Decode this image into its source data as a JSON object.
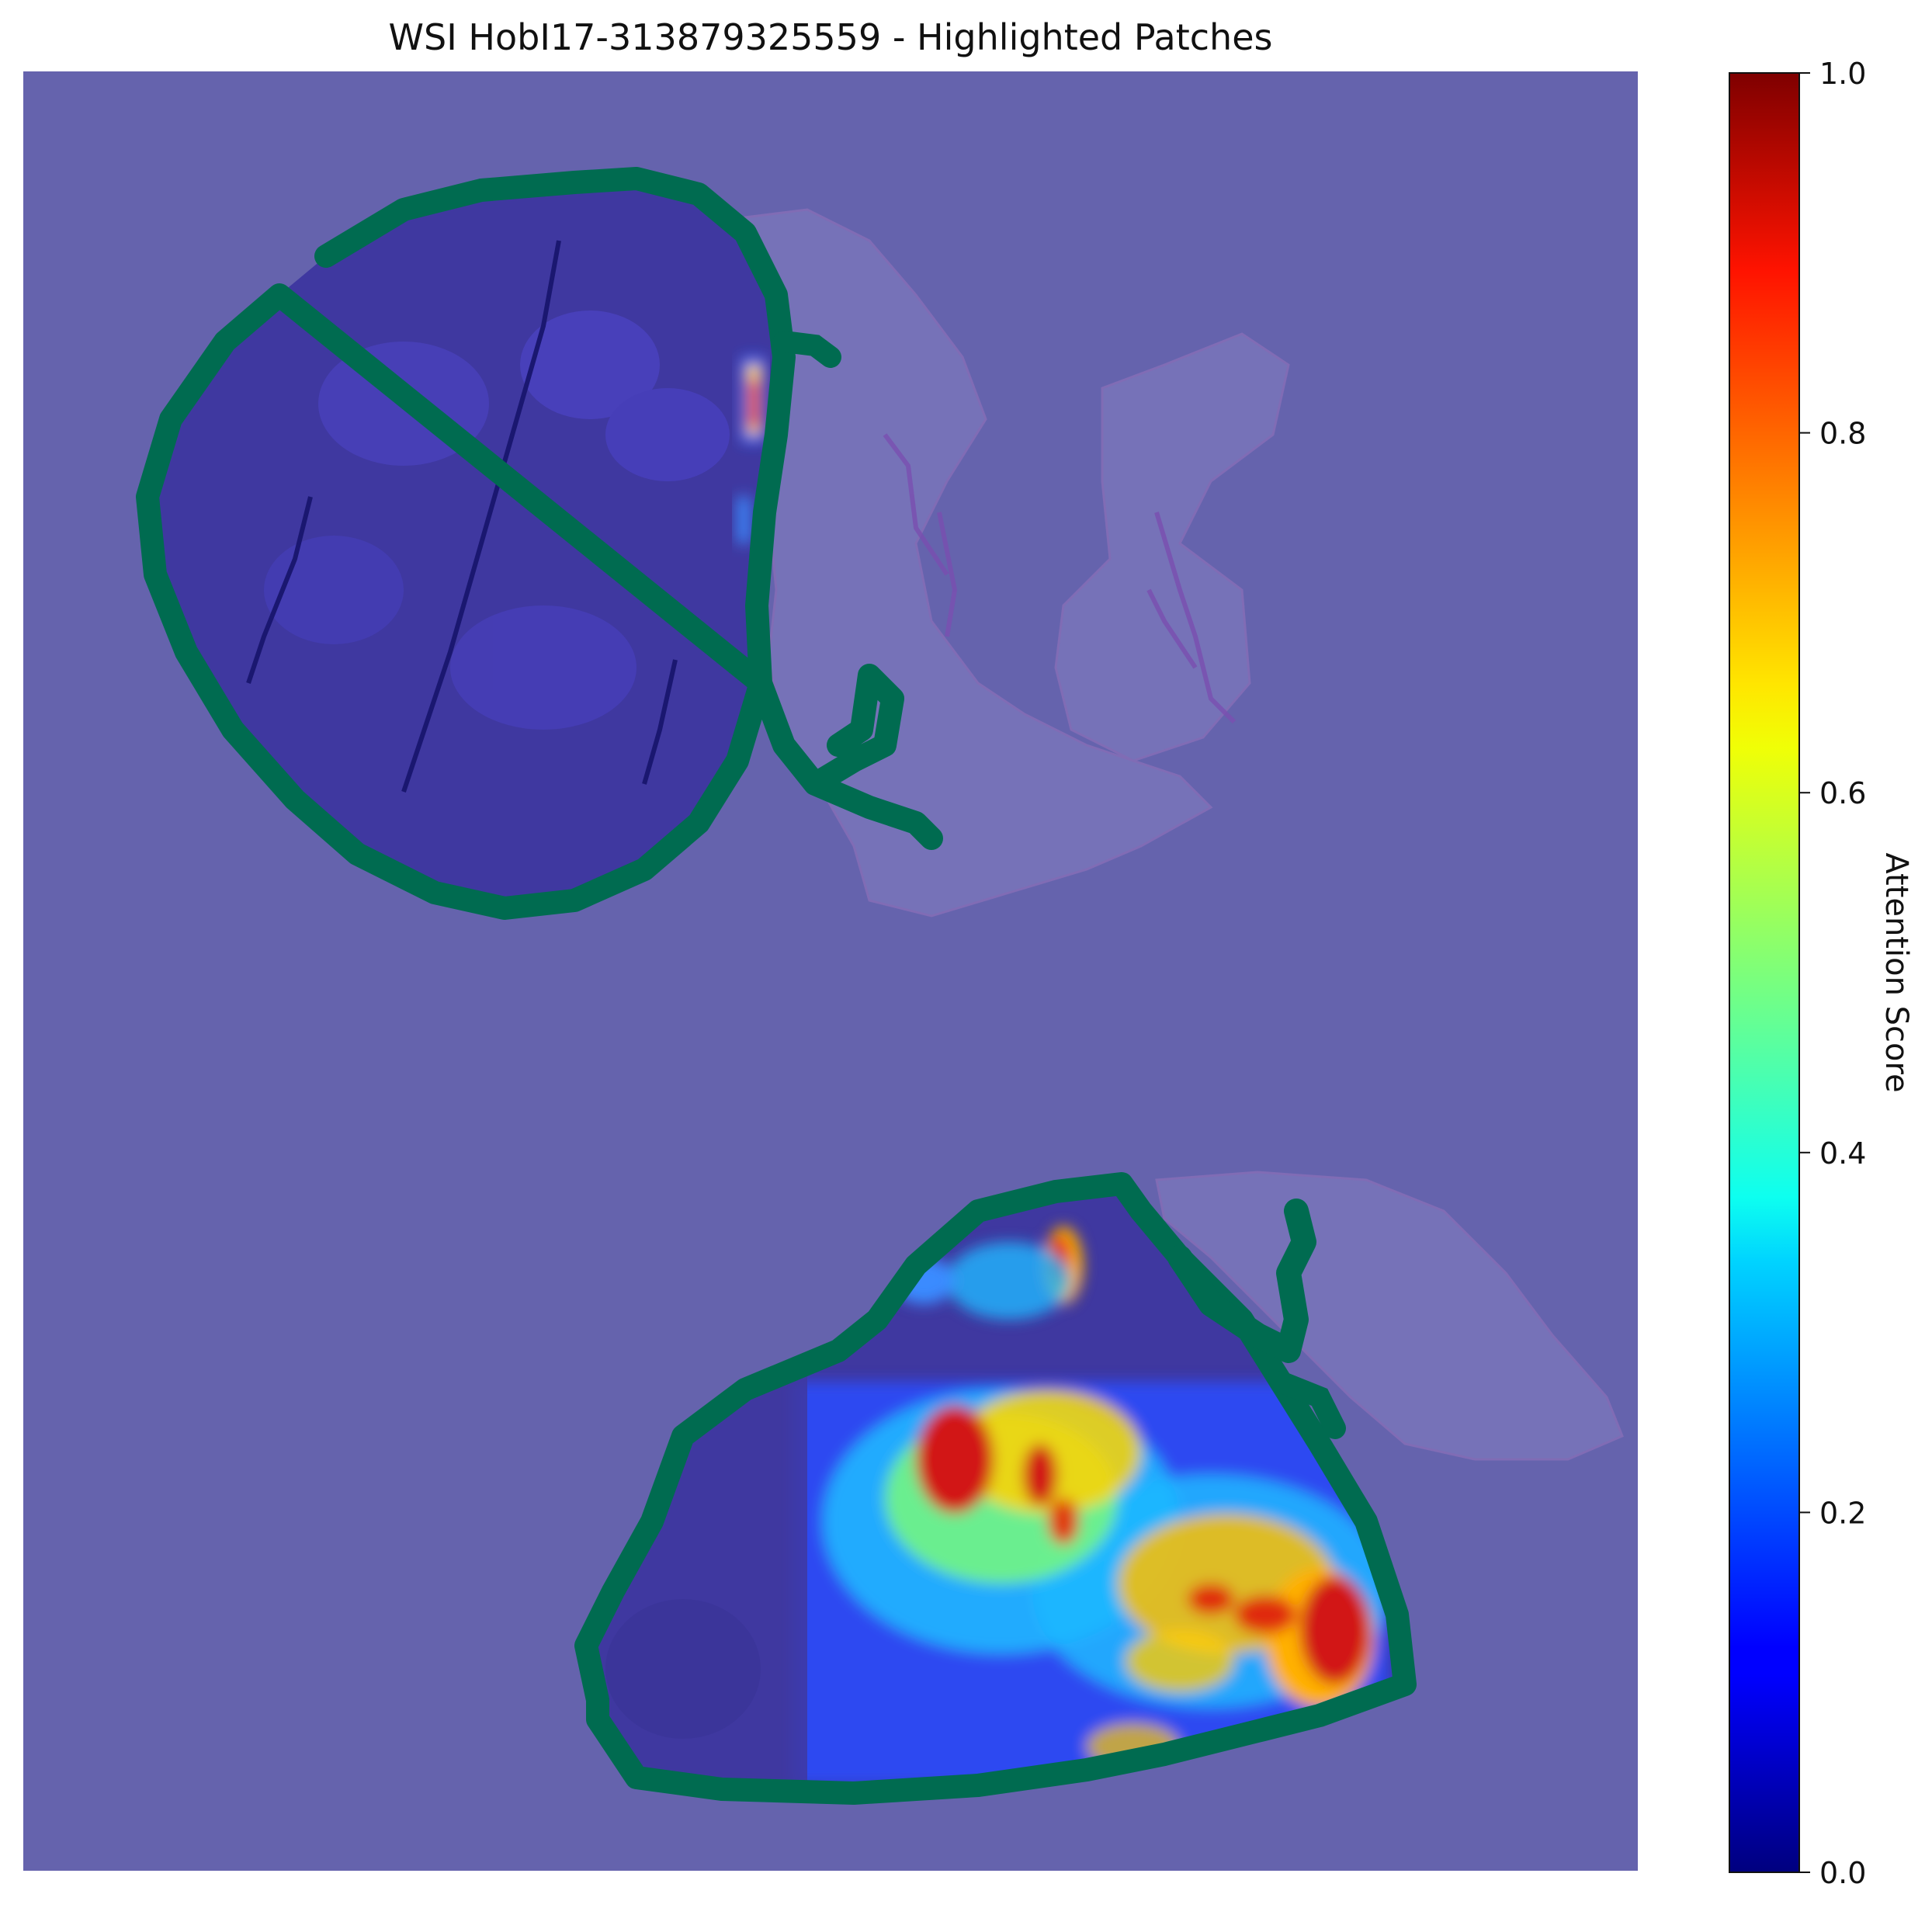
{
  "figure": {
    "title": "WSI HobI17-313879325559 - Highlighted Patches"
  },
  "colors": {
    "background_overlay": "#6563ad",
    "tissue_dark": "#3f38a0",
    "tissue_faint": "#7c78bc",
    "contour": "#006b50",
    "hot": "#d21414",
    "warm": "#ffb400",
    "mid": "#7dff73",
    "cool": "#00c8ff",
    "cold": "#2a4dff"
  },
  "chart_data": {
    "type": "heatmap",
    "title": "WSI HobI17-313879325559 - Highlighted Patches",
    "colorbar": {
      "label": "Attention Score",
      "colormap": "jet",
      "range": [
        0.0,
        1.0
      ],
      "ticks": [
        0.0,
        0.2,
        0.4,
        0.6,
        0.8,
        1.0
      ],
      "tick_labels": [
        "0.0",
        "0.2",
        "0.4",
        "0.6",
        "0.8",
        "1.0"
      ]
    },
    "axes_visible": false,
    "regions": [
      {
        "name": "upper tissue section",
        "highlighted": true,
        "peak_attention": 0.9,
        "typical_attention": 0.15
      },
      {
        "name": "lower tissue section",
        "highlighted": true,
        "peak_attention": 0.95,
        "typical_attention": 0.4
      }
    ]
  }
}
